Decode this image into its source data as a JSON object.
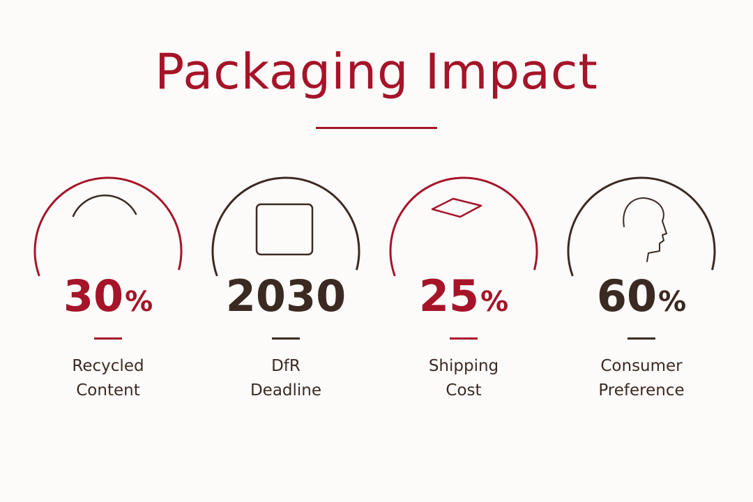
{
  "header": {
    "title": "Packaging Impact"
  },
  "stats": [
    {
      "value": "30",
      "unit": "%",
      "label": [
        "Recycled",
        "Content"
      ]
    },
    {
      "value": "2030",
      "label": [
        "DfR",
        "Deadline"
      ]
    },
    {
      "value": "25",
      "unit": "%",
      "label": [
        "Shipping",
        "Cost"
      ]
    },
    {
      "value": "60",
      "unit": "%",
      "label": [
        "Consumer",
        "Preference"
      ]
    }
  ]
}
